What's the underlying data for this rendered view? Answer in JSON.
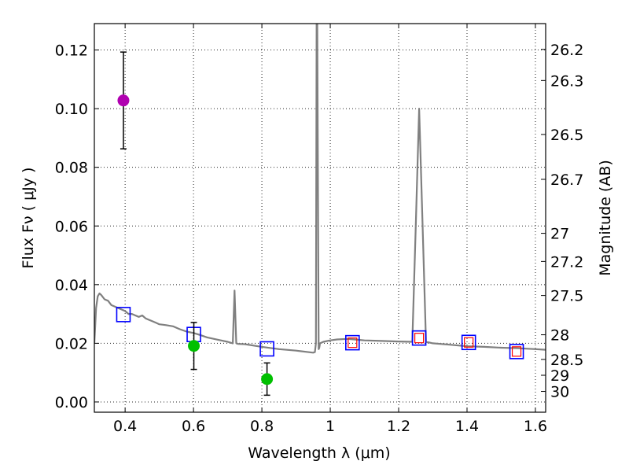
{
  "chart_data": {
    "type": "scatter",
    "title": "",
    "xlabel": "Wavelength  λ (μm)",
    "ylabel": "Flux  Fν  ( μJy )",
    "y2label": "Magnitude (AB)",
    "xlim": [
      0.31,
      1.63
    ],
    "ylim": [
      -0.0035,
      0.129
    ],
    "grid": true,
    "colors": {
      "spectrum": "#808080",
      "magenta_point": "#b000b0",
      "green_point": "#00c000",
      "model_box": "#0000ff",
      "inner_box": "#ff0000",
      "errorbar": "#000000"
    },
    "x_ticks": [
      {
        "value": 0.4,
        "label": "0.4"
      },
      {
        "value": 0.6,
        "label": "0.6"
      },
      {
        "value": 0.8,
        "label": "0.8"
      },
      {
        "value": 1.0,
        "label": "1"
      },
      {
        "value": 1.2,
        "label": "1.2"
      },
      {
        "value": 1.4,
        "label": "1.4"
      },
      {
        "value": 1.6,
        "label": "1.6"
      }
    ],
    "y_ticks": [
      {
        "value": 0.0,
        "label": "0.00"
      },
      {
        "value": 0.02,
        "label": "0.02"
      },
      {
        "value": 0.04,
        "label": "0.04"
      },
      {
        "value": 0.06,
        "label": "0.06"
      },
      {
        "value": 0.08,
        "label": "0.08"
      },
      {
        "value": 0.1,
        "label": "0.10"
      },
      {
        "value": 0.12,
        "label": "0.12"
      }
    ],
    "mag_ticks": [
      {
        "label": "26.2",
        "flux": 0.1202
      },
      {
        "label": "26.3",
        "flux": 0.1096
      },
      {
        "label": "26.5",
        "flux": 0.0912
      },
      {
        "label": "26.7",
        "flux": 0.0759
      },
      {
        "label": "27",
        "flux": 0.0575
      },
      {
        "label": "27.2",
        "flux": 0.0479
      },
      {
        "label": "27.5",
        "flux": 0.0363
      },
      {
        "label": "28",
        "flux": 0.0229
      },
      {
        "label": "28.5",
        "flux": 0.0145
      },
      {
        "label": "29",
        "flux": 0.0091
      },
      {
        "label": "30",
        "flux": 0.0036
      }
    ],
    "spectrum": {
      "name": "model spectrum",
      "x": [
        0.31,
        0.315,
        0.32,
        0.325,
        0.33,
        0.34,
        0.35,
        0.36,
        0.37,
        0.38,
        0.39,
        0.4,
        0.41,
        0.42,
        0.43,
        0.44,
        0.45,
        0.46,
        0.47,
        0.48,
        0.49,
        0.5,
        0.52,
        0.54,
        0.56,
        0.58,
        0.6,
        0.62,
        0.64,
        0.66,
        0.68,
        0.7,
        0.715,
        0.72,
        0.725,
        0.73,
        0.75,
        0.8,
        0.85,
        0.9,
        0.95,
        0.955,
        0.958,
        0.96,
        0.962,
        0.966,
        0.968,
        0.97,
        0.98,
        1.0,
        1.02,
        1.05,
        1.08,
        1.1,
        1.15,
        1.2,
        1.24,
        1.25,
        1.26,
        1.27,
        1.28,
        1.3,
        1.35,
        1.4,
        1.45,
        1.5,
        1.55,
        1.6,
        1.63
      ],
      "y": [
        0.02,
        0.032,
        0.036,
        0.037,
        0.0365,
        0.035,
        0.0345,
        0.033,
        0.0325,
        0.032,
        0.0315,
        0.031,
        0.03,
        0.03,
        0.0295,
        0.029,
        0.0295,
        0.0285,
        0.028,
        0.0275,
        0.027,
        0.0265,
        0.0262,
        0.0258,
        0.0248,
        0.024,
        0.0235,
        0.0228,
        0.022,
        0.0215,
        0.021,
        0.0205,
        0.02,
        0.038,
        0.02,
        0.0198,
        0.0197,
        0.0188,
        0.018,
        0.0175,
        0.0168,
        0.017,
        0.02,
        0.13,
        0.13,
        0.018,
        0.0185,
        0.02,
        0.0205,
        0.021,
        0.0213,
        0.0215,
        0.0212,
        0.021,
        0.0208,
        0.0206,
        0.0205,
        0.06,
        0.1,
        0.06,
        0.0205,
        0.02,
        0.0195,
        0.019,
        0.0188,
        0.0185,
        0.0183,
        0.018,
        0.0178
      ]
    },
    "observed_points": [
      {
        "name": "magenta",
        "x": 0.395,
        "y": 0.1028,
        "yerr_low": 0.0165,
        "yerr_high": 0.0165,
        "color": "#b000b0"
      },
      {
        "name": "green-1",
        "x": 0.601,
        "y": 0.0191,
        "yerr_low": 0.008,
        "yerr_high": 0.008,
        "color": "#00c000"
      },
      {
        "name": "green-2",
        "x": 0.815,
        "y": 0.0078,
        "yerr_low": 0.0055,
        "yerr_high": 0.0055,
        "color": "#00c000"
      }
    ],
    "model_boxes": [
      {
        "x": 0.395,
        "y": 0.0298,
        "inner": false
      },
      {
        "x": 0.601,
        "y": 0.023,
        "inner": false
      },
      {
        "x": 0.815,
        "y": 0.0181,
        "inner": false
      },
      {
        "x": 1.065,
        "y": 0.0202,
        "inner": true
      },
      {
        "x": 1.26,
        "y": 0.0218,
        "inner": true
      },
      {
        "x": 1.405,
        "y": 0.0203,
        "inner": true
      },
      {
        "x": 1.545,
        "y": 0.0172,
        "inner": true
      }
    ]
  }
}
